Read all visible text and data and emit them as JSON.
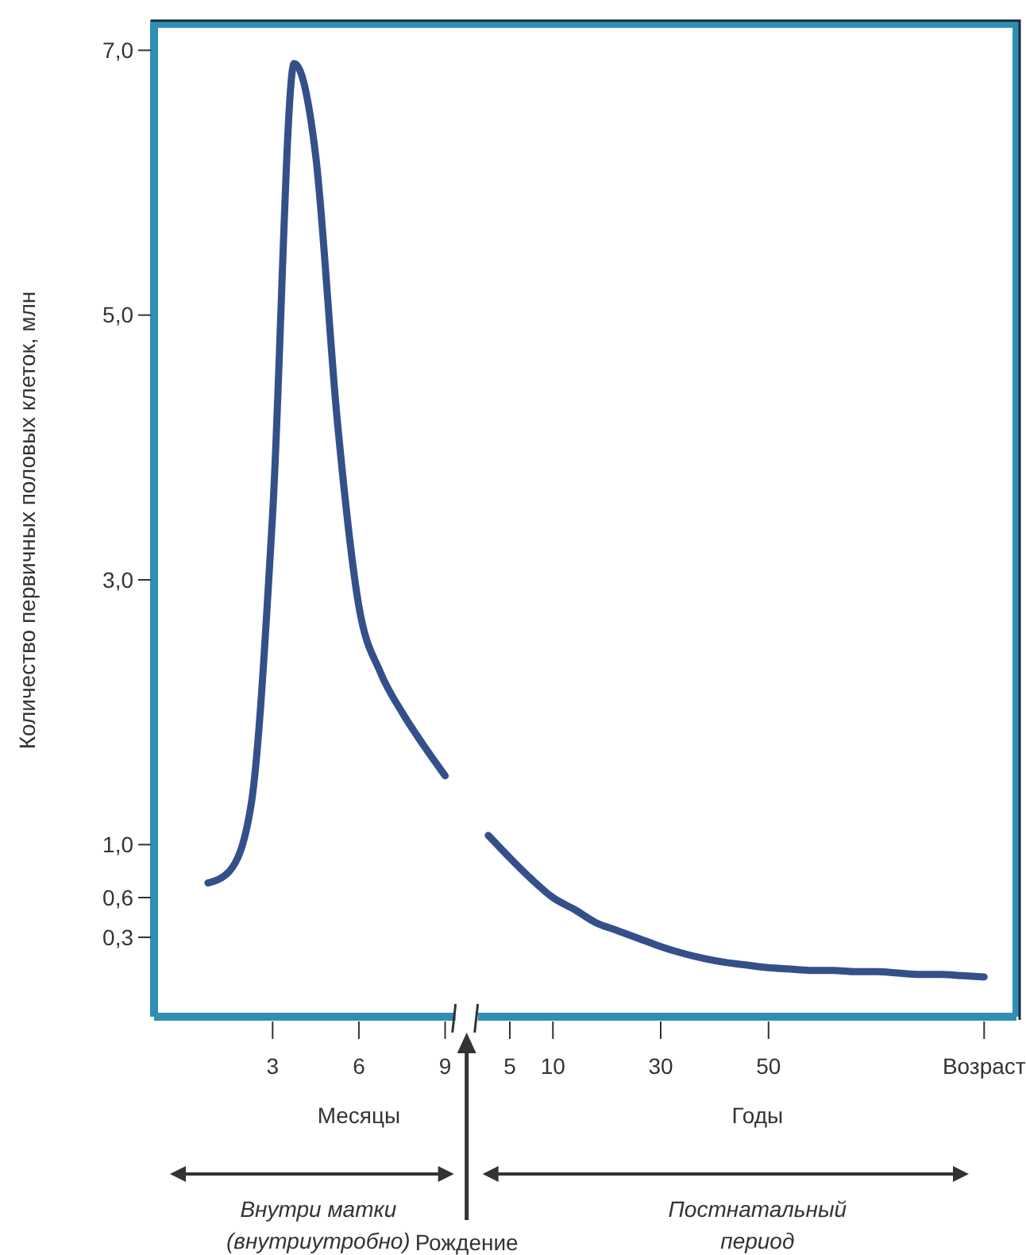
{
  "chart_data": {
    "type": "line",
    "ylabel": "Количество первичных половых клеток, млн",
    "categories": [
      null,
      null,
      null,
      null,
      null,
      "3",
      null,
      null,
      null,
      "6",
      null,
      null,
      null,
      "9",
      null,
      null,
      "5",
      null,
      "10",
      null,
      null,
      null,
      null,
      "30",
      null,
      null,
      null,
      null,
      "50",
      null,
      null,
      null,
      null,
      null,
      null,
      null,
      null,
      null,
      "Возраст",
      null
    ],
    "series": [
      {
        "color": "#34508a",
        "values": [
          null,
          null,
          0.71,
          0.8,
          1.3,
          3.5,
          6.9,
          6.2,
          4.2,
          2.8,
          2.3,
          2.0,
          1.75,
          1.52,
          null,
          1.07,
          0.9,
          0.74,
          0.6,
          0.51,
          0.41,
          0.35,
          0.29,
          0.23,
          0.18,
          0.14,
          0.11,
          0.09,
          0.07,
          0.06,
          0.05,
          0.05,
          0.04,
          0.04,
          0.03,
          0.02,
          0.02,
          0.01,
          0.0,
          null
        ]
      }
    ],
    "ylim": [
      -0.3,
      7.2
    ],
    "yticks": [
      {
        "value": 0.3,
        "label": "0,3"
      },
      {
        "value": 0.6,
        "label": "0,6"
      },
      {
        "value": 1.0,
        "label": "1,0"
      },
      {
        "value": 3.0,
        "label": "3,0"
      },
      {
        "value": 5.0,
        "label": "5,0"
      },
      {
        "value": 7.0,
        "label": "7,0"
      }
    ],
    "annotations": [
      "Месяцы",
      "Годы",
      "Внутри матки (внутриутробно)",
      "Рождение",
      "Постнатальный период"
    ],
    "grid": false,
    "marker": "none",
    "line_style": "solid"
  }
}
